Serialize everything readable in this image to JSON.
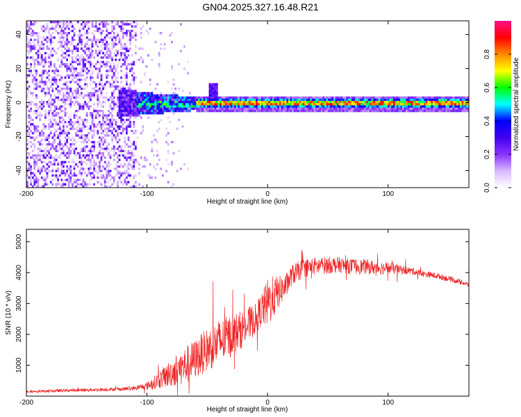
{
  "title": "GN04.2025.327.16.48.R21",
  "colors": {
    "snr_line": "#ee2222",
    "frame": "#000000",
    "background": "#ffffff"
  },
  "chart_data": [
    {
      "type": "heatmap",
      "xlabel": "Height of straight line (km)",
      "ylabel": "Frequency (Hz)",
      "xlim": [
        -200,
        167
      ],
      "ylim": [
        -50,
        48
      ],
      "xticks": [
        -200,
        -100,
        0,
        100
      ],
      "xtick_labels": [
        "-200",
        "-100",
        "0",
        "100"
      ],
      "yticks": [
        -40,
        -20,
        0,
        20,
        40
      ],
      "ytick_labels": [
        "-40",
        "-20",
        "0",
        "20",
        "40"
      ],
      "colorbar": {
        "label": "Normalized spectral amplitude",
        "range": [
          0,
          1
        ],
        "ticks": [
          0,
          0.2,
          0.4,
          0.6,
          0.8
        ],
        "tick_labels": [
          "0.0",
          "0.2",
          "0.4",
          "0.6",
          "0.8"
        ],
        "colors": [
          "#ffffff",
          "#d9b8ff",
          "#8833ff",
          "#4400ee",
          "#0000ff",
          "#00ffff",
          "#00ff00",
          "#ffff00",
          "#ff8800",
          "#ff0000",
          "#ff1188"
        ]
      },
      "regions": [
        {
          "description": "broadband noise",
          "x_range": [
            -200,
            -110
          ],
          "freq_range": [
            -50,
            48
          ],
          "amplitude": 0.15
        },
        {
          "description": "transition",
          "x_range": [
            -115,
            -60
          ],
          "freq_range": [
            -6,
            6
          ],
          "amplitude": 0.35
        },
        {
          "description": "narrow carrier",
          "x_range": [
            -60,
            167
          ],
          "freq_center": 0,
          "freq_halfwidth": 3,
          "amplitude": 0.85
        }
      ]
    },
    {
      "type": "line",
      "xlabel": "Height of straight line (km)",
      "ylabel": "SNR (10 * v/v)",
      "xlim": [
        -200,
        167
      ],
      "ylim": [
        0,
        5400
      ],
      "xticks": [
        -200,
        -100,
        0,
        100
      ],
      "xtick_labels": [
        "-200",
        "-100",
        "0",
        "100"
      ],
      "yticks": [
        1000,
        2000,
        3000,
        4000,
        5000
      ],
      "ytick_labels": [
        "1000",
        "2000",
        "3000",
        "4000",
        "5000"
      ],
      "series": [
        {
          "name": "SNR",
          "x": [
            -200,
            -180,
            -160,
            -140,
            -120,
            -110,
            -100,
            -90,
            -80,
            -70,
            -60,
            -50,
            -40,
            -30,
            -20,
            -10,
            -5,
            0,
            5,
            10,
            15,
            20,
            30,
            40,
            50,
            60,
            70,
            80,
            90,
            100,
            110,
            120,
            130,
            140,
            150,
            160,
            167
          ],
          "values": [
            150,
            170,
            190,
            210,
            230,
            260,
            330,
            520,
            750,
            950,
            1200,
            1500,
            1750,
            1950,
            2200,
            2500,
            2800,
            3000,
            3200,
            3400,
            3550,
            3900,
            4150,
            4200,
            4250,
            4250,
            4200,
            4200,
            4150,
            4150,
            4100,
            4050,
            3950,
            3900,
            3800,
            3700,
            3600
          ],
          "noise_amplitude": [
            40,
            45,
            50,
            55,
            60,
            70,
            120,
            280,
            450,
            600,
            650,
            700,
            750,
            700,
            600,
            500,
            550,
            800,
            700,
            500,
            400,
            350,
            300,
            300,
            280,
            260,
            250,
            240,
            230,
            200,
            150,
            120,
            100,
            100,
            90,
            80,
            80
          ]
        }
      ]
    }
  ]
}
